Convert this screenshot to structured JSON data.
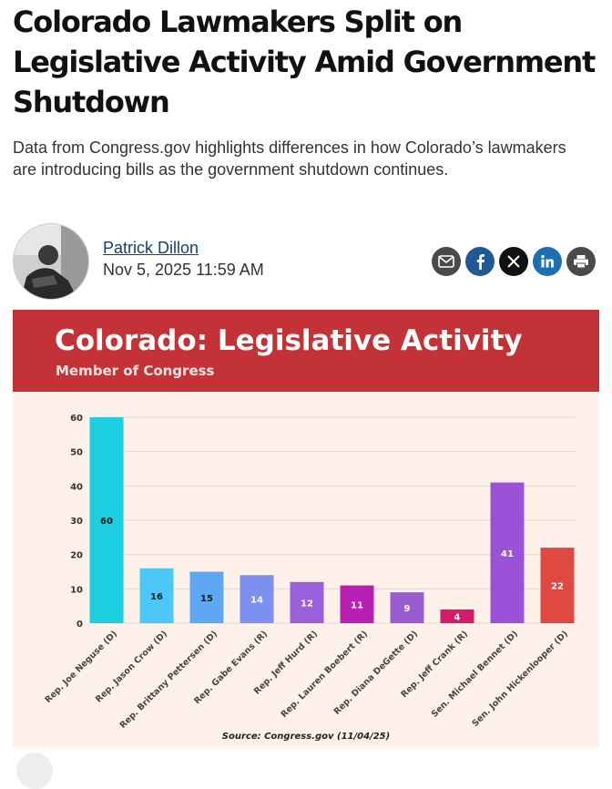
{
  "article": {
    "headline": "Colorado Lawmakers Split on Legislative Activity Amid Government Shutdown",
    "dek": "Data from Congress.gov highlights differences in how Colorado’s lawmakers are introducing bills as the government shutdown continues.",
    "author": "Patrick Dillon",
    "date": "Nov 5, 2025 11:59 AM"
  },
  "share": [
    {
      "icon": "email-icon",
      "color": "#4a4a4a"
    },
    {
      "icon": "facebook-icon",
      "color": "#1f5a96"
    },
    {
      "icon": "x-icon",
      "color": "#111111"
    },
    {
      "icon": "linkedin-icon",
      "color": "#1c6fb5"
    },
    {
      "icon": "print-icon",
      "color": "#4a4a4a"
    }
  ],
  "colors": {
    "header_red": "#c33236",
    "figure_bg": "#fdf1e9",
    "link_blue": "#1c3c78"
  },
  "chart_data": {
    "type": "bar",
    "title": "Colorado: Legislative Activity",
    "subtitle": "Member of Congress",
    "source": "Source: Congress.gov (11/04/25)",
    "xlabel": "",
    "ylabel": "",
    "ylim": [
      0,
      60
    ],
    "yticks": [
      0,
      10,
      20,
      30,
      40,
      50,
      60
    ],
    "grid": true,
    "legend": "none",
    "categories": [
      "Rep. Joe Neguse (D)",
      "Rep. Jason Crow (D)",
      "Rep. Brittany Pettersen (D)",
      "Rep. Gabe Evans (R)",
      "Rep. Jeff Hurd (R)",
      "Rep. Lauren Boebert (R)",
      "Rep. Diana DeGette (D)",
      "Rep. Jeff Crank (R)",
      "Sen. Michael Bennet (D)",
      "Sen. John Hickenlooper (D)"
    ],
    "values": [
      60,
      16,
      15,
      14,
      12,
      11,
      9,
      4,
      41,
      22
    ],
    "bar_colors": [
      "#1ccfe0",
      "#4dc7f5",
      "#5ea7f2",
      "#7d90ef",
      "#9a5fd9",
      "#b81fb3",
      "#9b5ccf",
      "#d41a6a",
      "#9b52d6",
      "#de4a42"
    ],
    "label_colors": [
      "#1a1a1a",
      "#1a1a1a",
      "#1a1a1a",
      "#ffffff",
      "#ffffff",
      "#ffffff",
      "#ffffff",
      "#ffffff",
      "#ffffff",
      "#ffffff"
    ]
  }
}
